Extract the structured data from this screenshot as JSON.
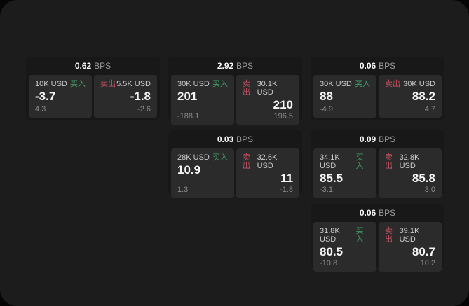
{
  "labels": {
    "bps_unit": "BPS",
    "buy": "买入",
    "sell": "卖出"
  },
  "colors": {
    "panel_background": "#1c1c1c",
    "card_background": "#181818",
    "subpanel_background": "#2b2b2b",
    "buy_green": "#42a06b",
    "sell_red": "#c5505f"
  },
  "cards": [
    {
      "bps": "0.62",
      "buy": {
        "amount": "10K USD",
        "price": "-3.7",
        "delta": "4.3"
      },
      "sell": {
        "amount": "5.5K USD",
        "price": "-1.8",
        "delta": "-2.6"
      }
    },
    {
      "bps": "2.92",
      "buy": {
        "amount": "30K USD",
        "price": "201",
        "delta": "-188.1"
      },
      "sell": {
        "amount": "30.1K USD",
        "price": "210",
        "delta": "196.5"
      }
    },
    {
      "bps": "0.06",
      "buy": {
        "amount": "30K USD",
        "price": "88",
        "delta": "-4.9"
      },
      "sell": {
        "amount": "30K USD",
        "price": "88.2",
        "delta": "4.7"
      }
    },
    {
      "bps": "0.03",
      "buy": {
        "amount": "28K USD",
        "price": "10.9",
        "delta": "1.3"
      },
      "sell": {
        "amount": "32.6K USD",
        "price": "11",
        "delta": "-1.8"
      }
    },
    {
      "bps": "0.09",
      "buy": {
        "amount": "34.1K USD",
        "price": "85.5",
        "delta": "-3.1"
      },
      "sell": {
        "amount": "32.8K USD",
        "price": "85.8",
        "delta": "3.0"
      }
    },
    {
      "bps": "0.06",
      "buy": {
        "amount": "31.8K USD",
        "price": "80.5",
        "delta": "-10.8"
      },
      "sell": {
        "amount": "39.1K USD",
        "price": "80.7",
        "delta": "10.2"
      }
    }
  ]
}
